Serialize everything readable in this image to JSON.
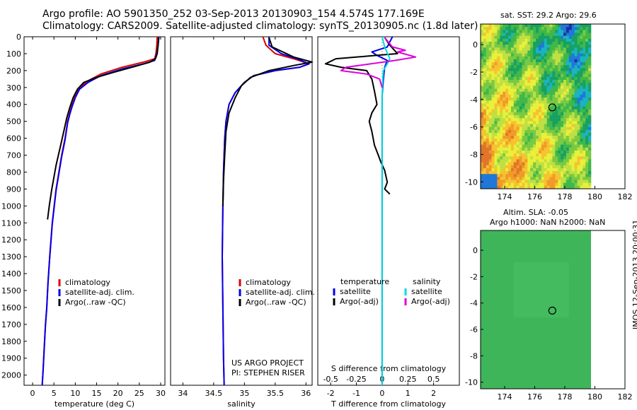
{
  "header": {
    "title_line1": "Argo profile: AO 5901350_252 03-Sep-2013 20130903_154 4.574S 177.169E",
    "title_line2": "Climatology: CARS2009. Satellite-adjusted climatology: synTS_20130905.nc (1.8d later)"
  },
  "footer": {
    "project": "US ARGO PROJECT",
    "pi": "PI: STEPHEN RISER",
    "timestamp": "IMOS 12-Sep-2013 20:00:31"
  },
  "chart_data": [
    {
      "type": "line",
      "panel": "temperature",
      "xlabel": "temperature (deg C)",
      "xlim": [
        -2,
        31
      ],
      "ylim": [
        2060,
        0
      ],
      "xticks": [
        0,
        5,
        10,
        15,
        20,
        25,
        30
      ],
      "yticks": [
        0,
        100,
        200,
        300,
        400,
        500,
        600,
        700,
        800,
        900,
        1000,
        1100,
        1200,
        1300,
        1400,
        1500,
        1600,
        1700,
        1800,
        1900,
        2000
      ],
      "legend": [
        "climatology",
        "satellite-adj. clim.",
        "Argo(..raw -QC)"
      ],
      "legend_colors": [
        "#dd0000",
        "#0000ee",
        "#000000"
      ],
      "series": [
        {
          "name": "climatology",
          "color": "#dd0000",
          "x": [
            29.2,
            29.1,
            28.9,
            28.6,
            26,
            21,
            16,
            13,
            11,
            10,
            9.3,
            8.7,
            8.2,
            7.6,
            6.8,
            5.5,
            4.6,
            4.0,
            3.6,
            3.3,
            3.0,
            2.7,
            2.5,
            2.35,
            2.25
          ],
          "y": [
            0,
            50,
            100,
            130,
            150,
            180,
            220,
            260,
            300,
            350,
            400,
            450,
            500,
            600,
            700,
            900,
            1100,
            1300,
            1450,
            1600,
            1700,
            1850,
            1950,
            2020,
            2060
          ]
        },
        {
          "name": "satellite-adj. clim.",
          "color": "#0000ee",
          "x": [
            29.6,
            29.4,
            29.1,
            28.6,
            26,
            21,
            16,
            13,
            11,
            10,
            9.3,
            8.7,
            8.2,
            7.6,
            6.8,
            5.5,
            4.6,
            4.0,
            3.6,
            3.3,
            3.0,
            2.7,
            2.5,
            2.35,
            2.25
          ],
          "y": [
            0,
            50,
            100,
            140,
            160,
            190,
            230,
            270,
            310,
            360,
            410,
            460,
            510,
            610,
            710,
            910,
            1110,
            1310,
            1460,
            1610,
            1710,
            1860,
            1960,
            2020,
            2060
          ]
        },
        {
          "name": "Argo(..raw -QC)",
          "color": "#000000",
          "x": [
            29.5,
            29.4,
            29.2,
            28.8,
            27.5,
            24,
            19,
            15,
            12,
            10.5,
            9.5,
            8.7,
            8.0,
            7.3,
            6.4,
            5.5,
            4.5,
            3.9,
            3.5
          ],
          "y": [
            5,
            50,
            100,
            130,
            150,
            175,
            210,
            240,
            270,
            310,
            360,
            420,
            480,
            560,
            660,
            760,
            900,
            1000,
            1080
          ]
        }
      ]
    },
    {
      "type": "line",
      "panel": "salinity",
      "xlabel": "salinity",
      "xlim": [
        33.8,
        36.1
      ],
      "ylim": [
        2060,
        0
      ],
      "xticks": [
        34,
        34.5,
        35,
        35.5,
        36
      ],
      "legend": [
        "climatology",
        "satellite-adj. clim.",
        "Argo(..raw -QC)"
      ],
      "legend_colors": [
        "#dd0000",
        "#0000ee",
        "#000000"
      ],
      "series": [
        {
          "name": "climatology",
          "color": "#dd0000",
          "x": [
            35.3,
            35.35,
            35.5,
            35.8,
            36.05,
            35.9,
            35.5,
            35.15,
            35.0,
            34.85,
            34.75,
            34.7,
            34.68,
            34.66,
            34.65,
            34.64,
            34.65,
            34.66,
            34.67
          ],
          "y": [
            0,
            50,
            100,
            130,
            160,
            180,
            200,
            230,
            270,
            330,
            400,
            500,
            600,
            800,
            1000,
            1300,
            1600,
            1900,
            2060
          ]
        },
        {
          "name": "satellite-adj. clim.",
          "color": "#0000ee",
          "x": [
            35.4,
            35.4,
            35.6,
            35.85,
            36.05,
            35.9,
            35.5,
            35.15,
            35.0,
            34.85,
            34.75,
            34.7,
            34.68,
            34.66,
            34.65,
            34.64,
            34.65,
            34.66,
            34.67
          ],
          "y": [
            0,
            50,
            100,
            130,
            160,
            180,
            200,
            230,
            270,
            330,
            400,
            500,
            600,
            800,
            1000,
            1300,
            1600,
            1900,
            2060
          ]
        },
        {
          "name": "Argo(..raw -QC)",
          "color": "#000000",
          "x": [
            35.4,
            35.45,
            35.8,
            36.1,
            35.8,
            35.4,
            35.1,
            34.95,
            34.85,
            34.75,
            34.7,
            34.68,
            34.66,
            34.65
          ],
          "y": [
            5,
            60,
            120,
            150,
            170,
            200,
            240,
            290,
            360,
            450,
            560,
            700,
            850,
            1000
          ]
        }
      ]
    },
    {
      "type": "line",
      "panel": "difference from climatology",
      "xlabel": "T difference from climatology",
      "xlabel_top": "S difference from climatology",
      "xlim": [
        -2.5,
        3
      ],
      "ylim": [
        2060,
        0
      ],
      "xticks": [
        -2,
        -1,
        0,
        1,
        2
      ],
      "xticks_salinity": [
        -0.5,
        -0.25,
        0,
        0.25,
        0.5
      ],
      "legend_headers": [
        "temperature",
        "salinity"
      ],
      "legend": [
        "satellite",
        "Argo(-adj)",
        "satellite",
        "Argo(-adj)"
      ],
      "legend_colors": [
        "#0000ee",
        "#000000",
        "#00dddd",
        "#dd00dd"
      ],
      "series": [
        {
          "name": "satellite",
          "color": "#0000ee",
          "x": [
            0.4,
            0.3,
            0.2,
            -0.4,
            -0.2,
            0.2,
            0.1,
            0.05,
            0,
            0
          ],
          "y": [
            0,
            30,
            60,
            90,
            110,
            140,
            180,
            250,
            350,
            2060
          ]
        },
        {
          "name": "Argo(-adj)",
          "color": "#000000",
          "x": [
            0.1,
            0.3,
            0.6,
            -0.2,
            -1.8,
            -2.2,
            -1.6,
            -0.6,
            -0.4,
            -0.3,
            -0.2,
            -0.4,
            -0.5,
            -0.4,
            -0.3,
            -0.15,
            -0.05,
            0.1,
            0.2,
            0.1,
            0.3
          ],
          "y": [
            5,
            50,
            100,
            110,
            130,
            160,
            180,
            200,
            250,
            320,
            400,
            450,
            500,
            560,
            640,
            700,
            740,
            790,
            860,
            900,
            930
          ]
        },
        {
          "name": "satellite",
          "color": "#00dddd",
          "x": [
            0,
            0.1,
            0.3,
            0.2,
            0.05,
            0.02,
            0,
            0
          ],
          "y": [
            0,
            60,
            130,
            160,
            200,
            260,
            350,
            2060
          ]
        },
        {
          "name": "Argo(-adj)",
          "color": "#dd00dd",
          "x": [
            0.1,
            0.4,
            0.9,
            0.6,
            1.3,
            0.5,
            -1.4,
            -1.6,
            -0.6,
            -0.1,
            0
          ],
          "y": [
            5,
            60,
            80,
            90,
            120,
            140,
            180,
            200,
            220,
            250,
            300
          ]
        }
      ]
    },
    {
      "type": "heatmap",
      "panel": "sat. SST",
      "title": "sat. SST: 29.2 Argo: 29.6",
      "xlim": [
        172.4,
        182
      ],
      "ylim": [
        -10.5,
        1.5
      ],
      "xticks": [
        174,
        176,
        178,
        180,
        182
      ],
      "yticks": [
        0,
        -2,
        -4,
        -6,
        -8,
        -10
      ],
      "marker": {
        "lon": 177.169,
        "lat": -4.574
      }
    },
    {
      "type": "heatmap",
      "panel": "Altim. SLA",
      "title_line1": "Altim. SLA: -0.05",
      "title_line2": "Argo h1000: NaN h2000: NaN",
      "xlim": [
        172.4,
        182
      ],
      "ylim": [
        -10.5,
        1.5
      ],
      "xticks": [
        174,
        176,
        178,
        180,
        182
      ],
      "yticks": [
        0,
        -2,
        -4,
        -6,
        -8,
        -10
      ],
      "marker": {
        "lon": 177.169,
        "lat": -4.574
      }
    }
  ]
}
